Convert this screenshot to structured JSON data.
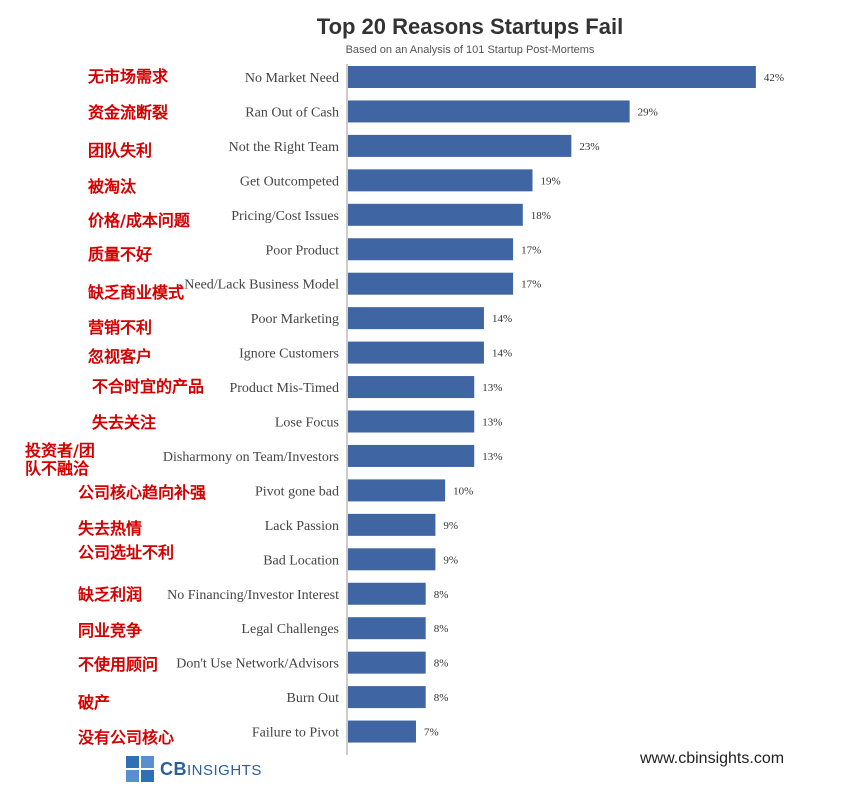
{
  "chart_data": {
    "type": "bar",
    "orientation": "horizontal",
    "title": "Top 20 Reasons Startups Fail",
    "subtitle": "Based on an Analysis of 101 Startup Post-Mortems",
    "categories": [
      "No Market Need",
      "Ran Out of Cash",
      "Not the Right Team",
      "Get Outcompeted",
      "Pricing/Cost Issues",
      "Poor Product",
      "Need/Lack Business Model",
      "Poor Marketing",
      "Ignore Customers",
      "Product Mis-Timed",
      "Lose Focus",
      "Disharmony on Team/Investors",
      "Pivot gone bad",
      "Lack Passion",
      "Bad Location",
      "No Financing/Investor Interest",
      "Legal Challenges",
      "Don't Use Network/Advisors",
      "Burn Out",
      "Failure to Pivot"
    ],
    "values": [
      42,
      29,
      23,
      19,
      18,
      17,
      17,
      14,
      14,
      13,
      13,
      13,
      10,
      9,
      9,
      8,
      8,
      8,
      8,
      7
    ],
    "data_labels": [
      "42%",
      "29%",
      "23%",
      "19%",
      "18%",
      "17%",
      "17%",
      "14%",
      "14%",
      "13%",
      "13%",
      "13%",
      "10%",
      "9%",
      "9%",
      "8%",
      "8%",
      "8%",
      "8%",
      "7%"
    ],
    "xlim": [
      0,
      45
    ],
    "unit": "%",
    "bar_color": "#3f65a2",
    "grid": false
  },
  "annotations_cn": [
    {
      "text": "无市场需求"
    },
    {
      "text": "资金流断裂"
    },
    {
      "text": "团队失利"
    },
    {
      "text": "被淘汰"
    },
    {
      "text": "价格/成本问题"
    },
    {
      "text": "质量不好"
    },
    {
      "text": "缺乏商业模式"
    },
    {
      "text": "营销不利"
    },
    {
      "text": "忽视客户"
    },
    {
      "text": "不合时宜的产品"
    },
    {
      "text": "失去关注"
    },
    {
      "text": "投资者/团"
    },
    {
      "text": "队不融洽"
    },
    {
      "text": "公司核心趋向补强"
    },
    {
      "text": "失去热情"
    },
    {
      "text": "公司选址不利"
    },
    {
      "text": "缺乏利润"
    },
    {
      "text": "同业竞争"
    },
    {
      "text": "不使用顾问"
    },
    {
      "text": "破产"
    },
    {
      "text": "没有公司核心"
    }
  ],
  "footer": {
    "logo_text_bold": "CB",
    "logo_text_rest": "INSIGHTS",
    "website": "www.cbinsights.com"
  },
  "colors": {
    "annotation": "#d40000",
    "logo": "#2b5f9e"
  }
}
